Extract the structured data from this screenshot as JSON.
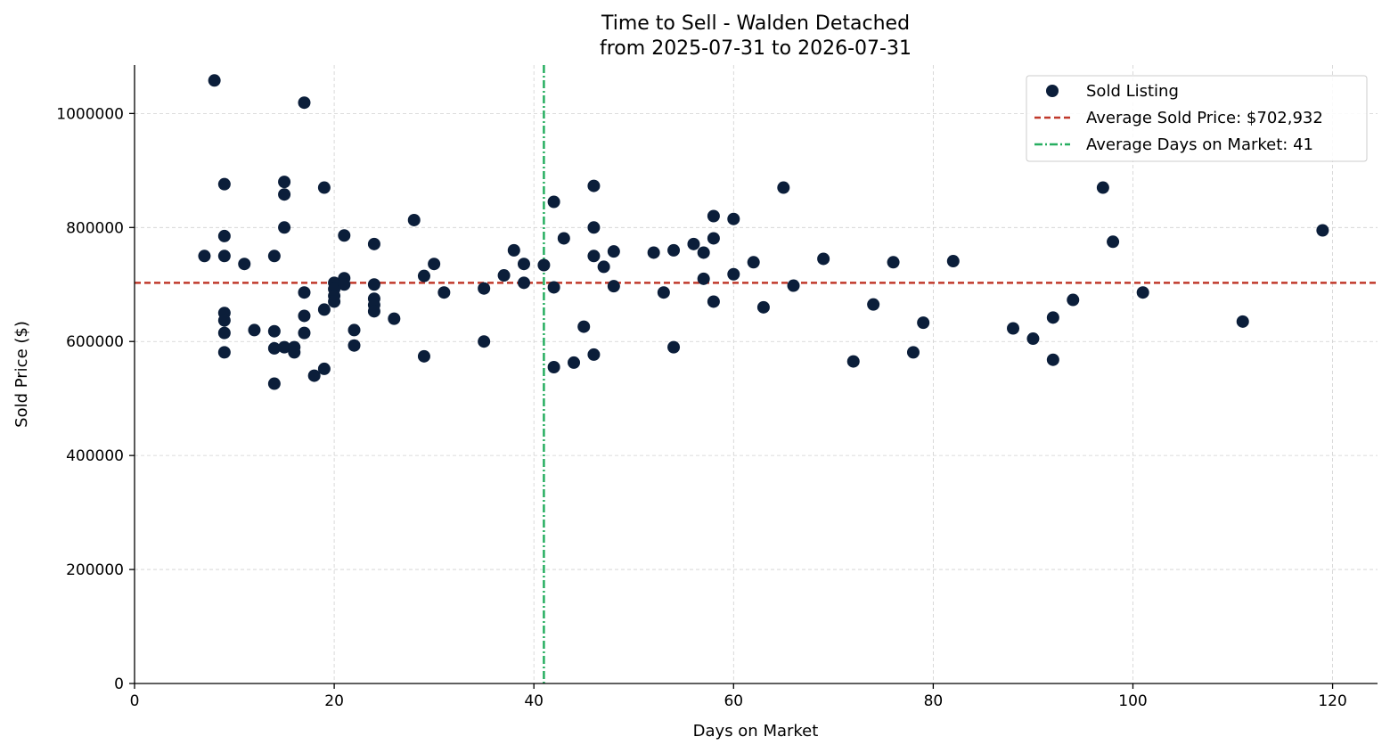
{
  "chart_data": {
    "type": "scatter",
    "title": "Time to Sell - Walden Detached",
    "subtitle": "from 2025-07-31 to 2026-07-31",
    "xlabel": "Days on Market",
    "ylabel": "Sold Price ($)",
    "xlim": [
      0,
      124.5
    ],
    "ylim": [
      0,
      1085000
    ],
    "xticks": [
      0,
      20,
      40,
      60,
      80,
      100,
      120
    ],
    "yticks": [
      0,
      200000,
      400000,
      600000,
      800000,
      1000000
    ],
    "grid": true,
    "legend_position": "top-right",
    "colors": {
      "points": "#0b1e3a",
      "avg_price_line": "#c0392b",
      "avg_days_line": "#27ae60"
    },
    "legend": {
      "points_label": "Sold Listing",
      "avg_price_label": "Average Sold Price: $702,932",
      "avg_days_label": "Average Days on Market: 41"
    },
    "avg_price": 702932,
    "avg_days": 41,
    "series": [
      {
        "name": "Sold Listing",
        "points": [
          [
            7,
            750000
          ],
          [
            8,
            1058000
          ],
          [
            9,
            876000
          ],
          [
            9,
            785000
          ],
          [
            9,
            750000
          ],
          [
            9,
            650000
          ],
          [
            9,
            637000
          ],
          [
            9,
            615000
          ],
          [
            9,
            581000
          ],
          [
            11,
            736000
          ],
          [
            12,
            620000
          ],
          [
            14,
            750000
          ],
          [
            14,
            618000
          ],
          [
            14,
            588000
          ],
          [
            14,
            526000
          ],
          [
            15,
            880000
          ],
          [
            15,
            858000
          ],
          [
            15,
            800000
          ],
          [
            15,
            590000
          ],
          [
            16,
            590000
          ],
          [
            16,
            581000
          ],
          [
            17,
            1019000
          ],
          [
            17,
            686000
          ],
          [
            17,
            645000
          ],
          [
            17,
            615000
          ],
          [
            18,
            540000
          ],
          [
            19,
            870000
          ],
          [
            19,
            656000
          ],
          [
            19,
            552000
          ],
          [
            20,
            703000
          ],
          [
            20,
            692000
          ],
          [
            20,
            680000
          ],
          [
            20,
            670000
          ],
          [
            21,
            786000
          ],
          [
            21,
            711000
          ],
          [
            21,
            700000
          ],
          [
            22,
            620000
          ],
          [
            22,
            593000
          ],
          [
            24,
            771000
          ],
          [
            24,
            700000
          ],
          [
            24,
            675000
          ],
          [
            24,
            664000
          ],
          [
            24,
            653000
          ],
          [
            26,
            640000
          ],
          [
            28,
            813000
          ],
          [
            29,
            715000
          ],
          [
            29,
            574000
          ],
          [
            30,
            736000
          ],
          [
            31,
            686000
          ],
          [
            35,
            693000
          ],
          [
            35,
            600000
          ],
          [
            37,
            716000
          ],
          [
            38,
            760000
          ],
          [
            39,
            736000
          ],
          [
            39,
            703000
          ],
          [
            41,
            734000
          ],
          [
            42,
            845000
          ],
          [
            42,
            695000
          ],
          [
            42,
            555000
          ],
          [
            43,
            781000
          ],
          [
            44,
            563000
          ],
          [
            45,
            626000
          ],
          [
            46,
            873000
          ],
          [
            46,
            800000
          ],
          [
            46,
            750000
          ],
          [
            46,
            577000
          ],
          [
            47,
            731000
          ],
          [
            48,
            758000
          ],
          [
            48,
            697000
          ],
          [
            52,
            756000
          ],
          [
            53,
            686000
          ],
          [
            54,
            760000
          ],
          [
            54,
            590000
          ],
          [
            56,
            771000
          ],
          [
            57,
            756000
          ],
          [
            57,
            710000
          ],
          [
            58,
            820000
          ],
          [
            58,
            781000
          ],
          [
            58,
            670000
          ],
          [
            60,
            815000
          ],
          [
            60,
            718000
          ],
          [
            62,
            739000
          ],
          [
            63,
            660000
          ],
          [
            65,
            870000
          ],
          [
            66,
            698000
          ],
          [
            69,
            745000
          ],
          [
            72,
            565000
          ],
          [
            74,
            665000
          ],
          [
            76,
            739000
          ],
          [
            78,
            581000
          ],
          [
            79,
            633000
          ],
          [
            82,
            741000
          ],
          [
            88,
            623000
          ],
          [
            90,
            605000
          ],
          [
            92,
            642000
          ],
          [
            92,
            568000
          ],
          [
            94,
            673000
          ],
          [
            97,
            870000
          ],
          [
            98,
            775000
          ],
          [
            101,
            686000
          ],
          [
            111,
            635000
          ],
          [
            119,
            795000
          ]
        ]
      }
    ]
  }
}
